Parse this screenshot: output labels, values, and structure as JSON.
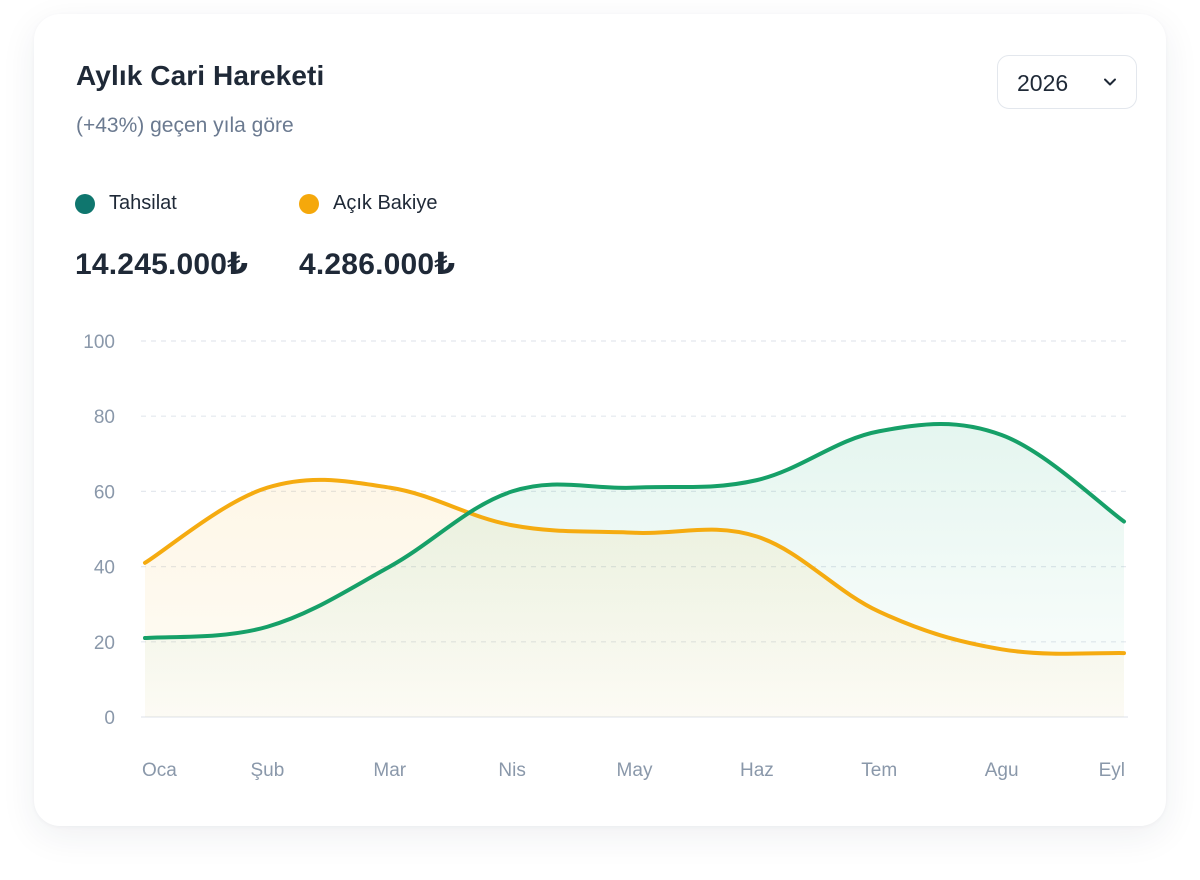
{
  "header": {
    "title": "Aylık Cari Hareketi",
    "subtitle": "(+43%) geçen yıla göre"
  },
  "year_selector": {
    "value": "2026",
    "icon": "chevron-down-icon"
  },
  "legend": [
    {
      "name": "Tahsilat",
      "color": "#0f766e",
      "total": "14.245.000₺"
    },
    {
      "name": "Açık Bakiye",
      "color": "#f5a80b",
      "total": "4.286.000₺"
    }
  ],
  "colors": {
    "tahsilat_line": "#16a068",
    "acik_bakiye_line": "#f5ab10",
    "grid": "#e4e8ee"
  },
  "chart_data": {
    "type": "area",
    "categories": [
      "Oca",
      "Şub",
      "Mar",
      "Nis",
      "May",
      "Haz",
      "Tem",
      "Agu",
      "Eyl"
    ],
    "ylim": [
      0,
      100
    ],
    "yticks": [
      0,
      20,
      40,
      60,
      80,
      100
    ],
    "grid": true,
    "legend_position": "top-left",
    "series": [
      {
        "name": "Tahsilat",
        "values": [
          21,
          24,
          40,
          60,
          61,
          63,
          76,
          75,
          52
        ]
      },
      {
        "name": "Açık Bakiye",
        "values": [
          41,
          61,
          61,
          51,
          49,
          48,
          28,
          18,
          17
        ]
      }
    ]
  }
}
